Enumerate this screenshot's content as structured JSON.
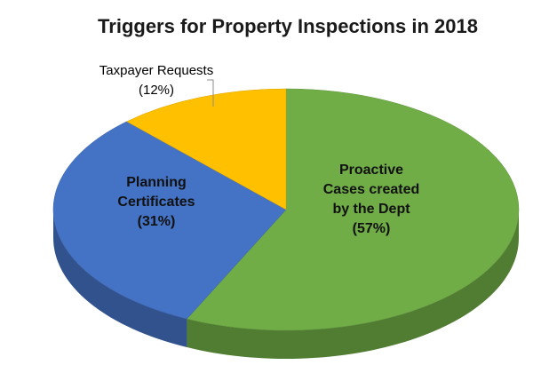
{
  "chart_data": {
    "type": "pie",
    "title": "Triggers for Property Inspections in 2018",
    "slices": [
      {
        "name": "Proactive Cases created by the Dept",
        "label_lines": [
          "Proactive",
          "Cases created",
          "by the Dept",
          "(57%)"
        ],
        "value": 57,
        "color": "#70ad47"
      },
      {
        "name": "Planning Certificates",
        "label_lines": [
          "Planning",
          "Certificates",
          "(31%)"
        ],
        "value": 31,
        "color": "#4472c4"
      },
      {
        "name": "Taxpayer Requests",
        "label_lines": [
          "Taxpayer Requests",
          "(12%)"
        ],
        "value": 12,
        "color": "#ffc000"
      }
    ],
    "legend": "none",
    "style": "3d-pie"
  }
}
